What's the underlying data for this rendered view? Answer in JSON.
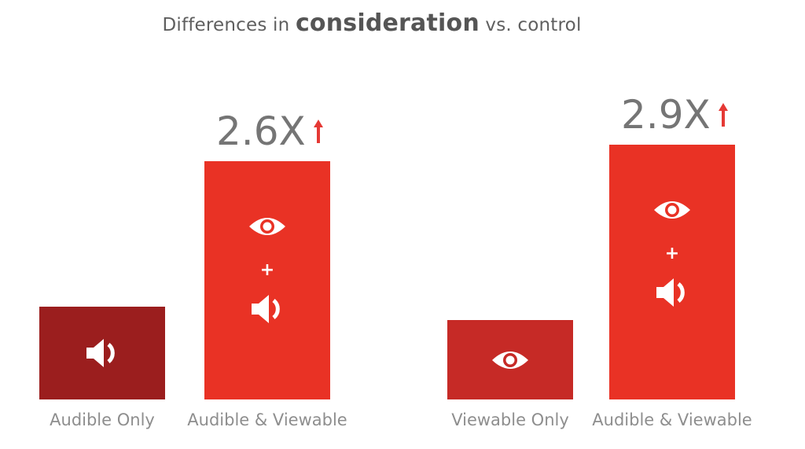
{
  "chart_data": {
    "type": "bar",
    "title": {
      "prefix": "Differences in ",
      "highlight": "consideration",
      "suffix": " vs. control"
    },
    "groups": [
      {
        "bars": [
          {
            "label": "Audible Only",
            "value": 1.0,
            "color": "#9b1e1e",
            "icons": [
              "speaker"
            ]
          },
          {
            "label": "Audible & Viewable",
            "value": 2.6,
            "display": "2.6X",
            "color": "#e93225",
            "icons": [
              "eye",
              "plus",
              "speaker"
            ]
          }
        ]
      },
      {
        "bars": [
          {
            "label": "Viewable Only",
            "value": 1.0,
            "color": "#c62a26",
            "icons": [
              "eye"
            ]
          },
          {
            "label": "Audible & Viewable",
            "value": 2.9,
            "display": "2.9X",
            "color": "#e93225",
            "icons": [
              "eye",
              "plus",
              "speaker"
            ]
          }
        ]
      }
    ],
    "annotation_color": "#e53935",
    "grid": false,
    "legend": "none"
  }
}
